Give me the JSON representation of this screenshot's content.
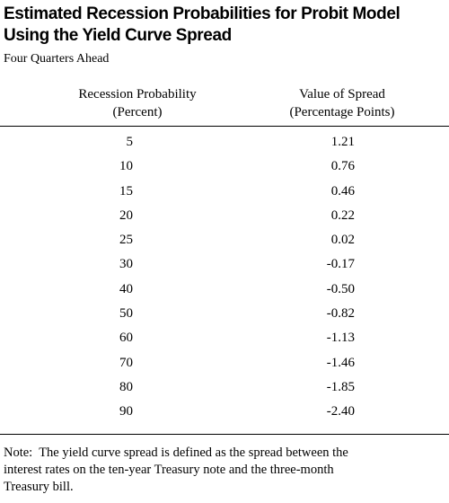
{
  "title_line1": "Estimated Recession Probabilities for Probit Model",
  "title_line2": "Using the Yield Curve Spread",
  "subtitle": "Four Quarters Ahead",
  "columns": {
    "probability": {
      "line1": "Recession Probability",
      "line2": "(Percent)"
    },
    "spread": {
      "line1": "Value of Spread",
      "line2": "(Percentage Points)"
    }
  },
  "rows": [
    {
      "probability": "5",
      "spread": "1.21"
    },
    {
      "probability": "10",
      "spread": "0.76"
    },
    {
      "probability": "15",
      "spread": "0.46"
    },
    {
      "probability": "20",
      "spread": "0.22"
    },
    {
      "probability": "25",
      "spread": "0.02"
    },
    {
      "probability": "30",
      "spread": "-0.17"
    },
    {
      "probability": "40",
      "spread": "-0.50"
    },
    {
      "probability": "50",
      "spread": "-0.82"
    },
    {
      "probability": "60",
      "spread": "-1.13"
    },
    {
      "probability": "70",
      "spread": "-1.46"
    },
    {
      "probability": "80",
      "spread": "-1.85"
    },
    {
      "probability": "90",
      "spread": "-2.40"
    }
  ],
  "note_line1": "Note:  The yield curve spread is defined as the spread between the",
  "note_line2": "interest rates on the ten-year Treasury note and the three-month",
  "note_line3": "Treasury bill."
}
